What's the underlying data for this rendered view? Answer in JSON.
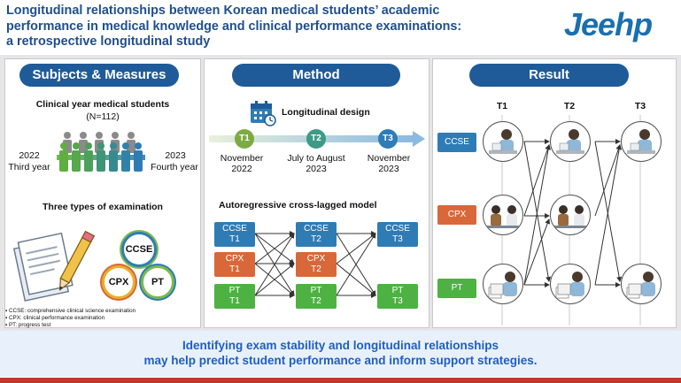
{
  "header": {
    "title_line1": "Longitudinal relationships between Korean medical students’ academic",
    "title_line2": "performance in medical knowledge and clinical performance examinations:",
    "title_line3": "a retrospective longitudinal study",
    "logo_main": "Jee",
    "logo_accent": "hp"
  },
  "panel1": {
    "heading": "Subjects & Measures",
    "subjects_title": "Clinical year medical students",
    "subjects_n": "(N=112)",
    "left_year": "2022",
    "left_label": "Third year",
    "right_year": "2023",
    "right_label": "Fourth year",
    "exam_title": "Three types of examination",
    "badge_ccse": "CCSE",
    "badge_cpx": "CPX",
    "badge_pt": "PT",
    "abbr": [
      "CCSE: comprehensive clinical science examination",
      "CPX: clinical performance examination",
      "PT: progress test"
    ]
  },
  "panel2": {
    "heading": "Method",
    "design_title": "Longitudinal design",
    "timeline": [
      {
        "tag": "T1",
        "line1": "November",
        "line2": "2022"
      },
      {
        "tag": "T2",
        "line1": "July to August",
        "line2": "2023"
      },
      {
        "tag": "T3",
        "line1": "November",
        "line2": "2023"
      }
    ],
    "model_title": "Autoregressive cross-lagged model",
    "boxes": {
      "ccse_t1": [
        "CCSE",
        "T1"
      ],
      "ccse_t2": [
        "CCSE",
        "T2"
      ],
      "ccse_t3": [
        "CCSE",
        "T3"
      ],
      "cpx_t1": [
        "CPX",
        "T1"
      ],
      "cpx_t2": [
        "CPX",
        "T2"
      ],
      "pt_t1": [
        "PT",
        "T1"
      ],
      "pt_t2": [
        "PT",
        "T2"
      ],
      "pt_t3": [
        "PT",
        "T3"
      ]
    }
  },
  "panel3": {
    "heading": "Result",
    "cols": [
      "T1",
      "T2",
      "T3"
    ],
    "rows": [
      "CCSE",
      "CPX",
      "PT"
    ]
  },
  "bottom": {
    "line1": "Identifying exam stability and longitudinal relationships",
    "line2": "may help predict student performance and inform support strategies."
  },
  "colors": {
    "ccse": "#2f7cb5",
    "cpx": "#d8683a",
    "pt": "#4db242",
    "heading": "#1f5b98"
  }
}
